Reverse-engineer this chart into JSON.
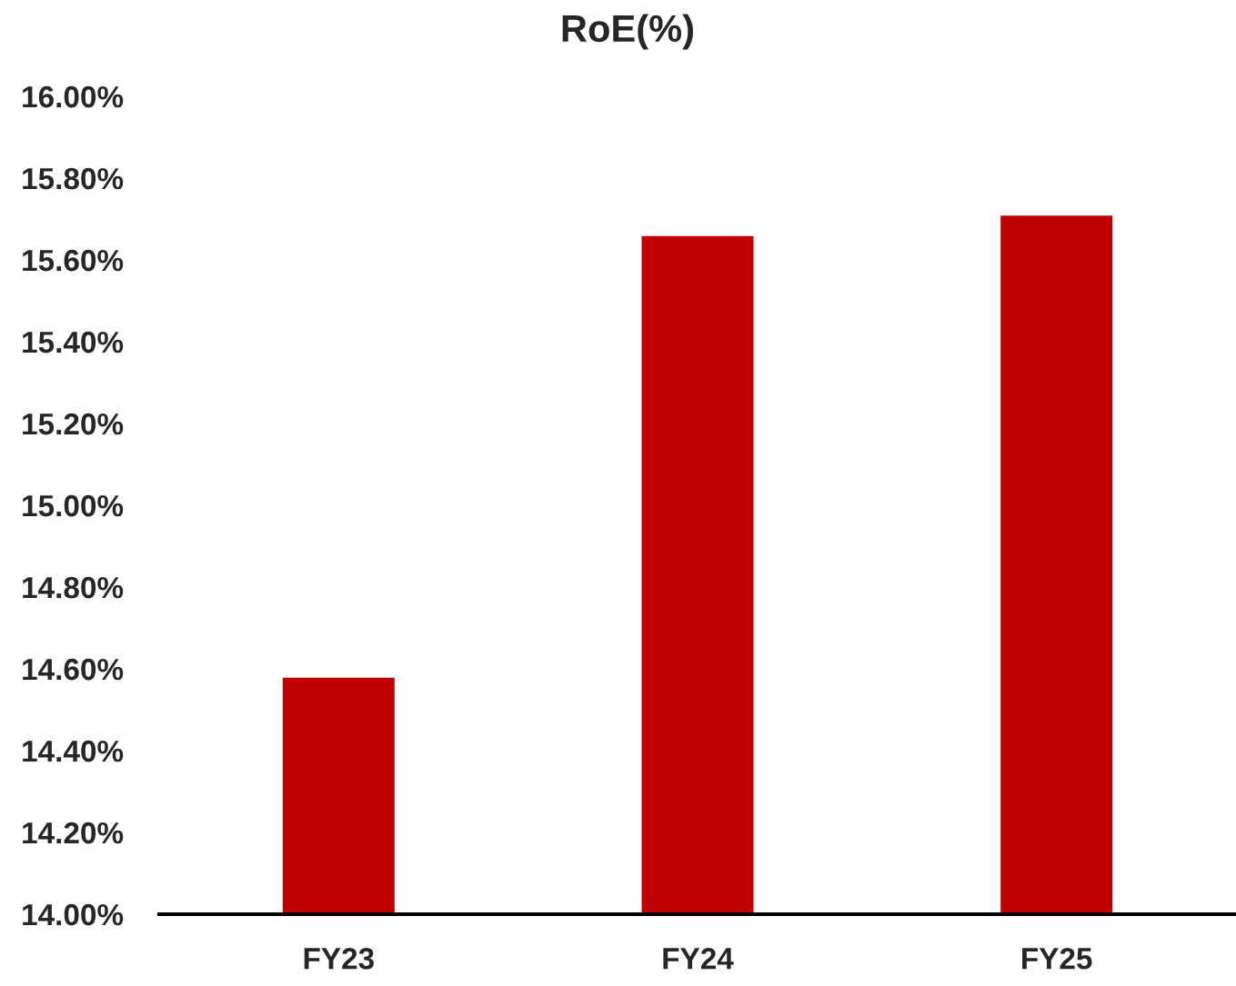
{
  "chart_data": {
    "type": "bar",
    "title": "RoE(%)",
    "categories": [
      "FY23",
      "FY24",
      "FY25"
    ],
    "values": [
      14.58,
      15.66,
      15.71
    ],
    "color": "#c00000",
    "ylim": [
      14,
      16
    ],
    "yticks": [
      {
        "value": 14,
        "label": "14.00%"
      },
      {
        "value": 14.2,
        "label": "14.20%"
      },
      {
        "value": 14.4,
        "label": "14.40%"
      },
      {
        "value": 14.6,
        "label": "14.60%"
      },
      {
        "value": 14.8,
        "label": "14.80%"
      },
      {
        "value": 15,
        "label": "15.00%"
      },
      {
        "value": 15.2,
        "label": "15.20%"
      },
      {
        "value": 15.4,
        "label": "15.40%"
      },
      {
        "value": 15.6,
        "label": "15.60%"
      },
      {
        "value": 15.8,
        "label": "15.80%"
      },
      {
        "value": 16,
        "label": "16.00%"
      }
    ],
    "grid": false,
    "legend": false
  }
}
